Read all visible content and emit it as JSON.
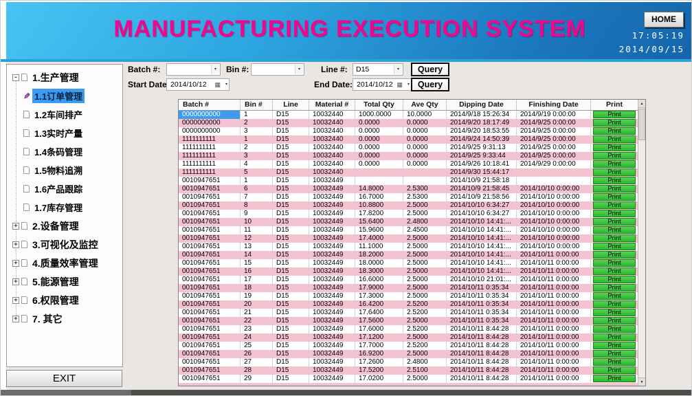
{
  "header": {
    "title": "MANUFACTURING EXECUTION SYSTEM",
    "home_label": "HOME",
    "time": "17:05:19",
    "date": "2014/09/15"
  },
  "glyphs": {
    "expand_plus": "+",
    "expand_minus": "-",
    "pencil": "✎",
    "dropdown": "▾",
    "calendar": "▦",
    "scroll_up": "▲",
    "scroll_down": "▼"
  },
  "sidebar": {
    "items": [
      {
        "label": "1.生产管理",
        "level": 0,
        "expander": "minus",
        "selected": false
      },
      {
        "label": "1.1订单管理",
        "level": 1,
        "selected": true
      },
      {
        "label": "1.2车间排产",
        "level": 1,
        "selected": false
      },
      {
        "label": "1.3实时产量",
        "level": 1,
        "selected": false
      },
      {
        "label": "1.4条码管理",
        "level": 1,
        "selected": false
      },
      {
        "label": "1.5物料追溯",
        "level": 1,
        "selected": false
      },
      {
        "label": "1.6产品跟踪",
        "level": 1,
        "selected": false
      },
      {
        "label": "1.7库存管理",
        "level": 1,
        "selected": false
      },
      {
        "label": "2.设备管理",
        "level": 0,
        "expander": "plus",
        "selected": false
      },
      {
        "label": "3.可视化及监控",
        "level": 0,
        "expander": "plus",
        "selected": false
      },
      {
        "label": "4.质量效率管理",
        "level": 0,
        "expander": "plus",
        "selected": false
      },
      {
        "label": "5.能源管理",
        "level": 0,
        "expander": "plus",
        "selected": false
      },
      {
        "label": "6.权限管理",
        "level": 0,
        "expander": "plus",
        "selected": false
      },
      {
        "label": "7. 其它",
        "level": 0,
        "expander": "plus",
        "selected": false
      }
    ],
    "exit_label": "EXIT"
  },
  "filters": {
    "batch_label": "Batch #:",
    "batch_value": "",
    "bin_label": "Bin #:",
    "bin_value": "",
    "line_label": "Line #:",
    "line_value": "D15",
    "query_label": "Query",
    "start_date_label": "Start Date :",
    "start_date_value": "2014/10/12",
    "end_date_label": "End Date:",
    "end_date_value": "2014/10/12",
    "query2_label": "Query"
  },
  "table": {
    "columns": [
      "Batch #",
      "Bin #",
      "Line",
      "Material #",
      "Total Qty",
      "Ave Qty",
      "Dipping Date",
      "Finishing Date",
      "Print"
    ],
    "print_label": "Print",
    "selected_row": 0,
    "selected_col": 0,
    "rows": [
      [
        "0000000000",
        "1",
        "D15",
        "10032440",
        "1000.0000",
        "10.0000",
        "2014/9/18 15:26:34",
        "2014/9/19 0:00:00"
      ],
      [
        "0000000000",
        "2",
        "D15",
        "10032440",
        "0.0000",
        "0.0000",
        "2014/9/20 18:17:49",
        "2014/9/25 0:00:00"
      ],
      [
        "0000000000",
        "3",
        "D15",
        "10032440",
        "0.0000",
        "0.0000",
        "2014/9/20 18:53:55",
        "2014/9/25 0:00:00"
      ],
      [
        "1111111111",
        "1",
        "D15",
        "10032440",
        "0.0000",
        "0.0000",
        "2014/9/24 14:50:39",
        "2014/9/25 0:00:00"
      ],
      [
        "1111111111",
        "2",
        "D15",
        "10032440",
        "0.0000",
        "0.0000",
        "2014/9/25 9:31:13",
        "2014/9/25 0:00:00"
      ],
      [
        "1111111111",
        "3",
        "D15",
        "10032440",
        "0.0000",
        "0.0000",
        "2014/9/25 9:33:44",
        "2014/9/25 0:00:00"
      ],
      [
        "1111111111",
        "4",
        "D15",
        "10032440",
        "0.0000",
        "0.0000",
        "2014/9/26 10:18:41",
        "2014/9/29 0:00:00"
      ],
      [
        "1111111111",
        "5",
        "D15",
        "10032440",
        "",
        "",
        "2014/9/30 15:44:17",
        ""
      ],
      [
        "0010947651",
        "1",
        "D15",
        "10032449",
        "",
        "",
        "2014/10/9 21:58:18",
        ""
      ],
      [
        "0010947651",
        "6",
        "D15",
        "10032449",
        "14.8000",
        "2.5300",
        "2014/10/9 21:58:45",
        "2014/10/10 0:00:00"
      ],
      [
        "0010947651",
        "7",
        "D15",
        "10032449",
        "16.7000",
        "2.5300",
        "2014/10/9 21:58:56",
        "2014/10/10 0:00:00"
      ],
      [
        "0010947651",
        "8",
        "D15",
        "10032449",
        "10.8800",
        "2.5000",
        "2014/10/10 6:34:27",
        "2014/10/10 0:00:00"
      ],
      [
        "0010947651",
        "9",
        "D15",
        "10032449",
        "17.8200",
        "2.5000",
        "2014/10/10 6:34:27",
        "2014/10/10 0:00:00"
      ],
      [
        "0010947651",
        "10",
        "D15",
        "10032449",
        "15.6400",
        "2.4800",
        "2014/10/10 14:41:...",
        "2014/10/10 0:00:00"
      ],
      [
        "0010947651",
        "11",
        "D15",
        "10032449",
        "15.9600",
        "2.4500",
        "2014/10/10 14:41:...",
        "2014/10/10 0:00:00"
      ],
      [
        "0010947651",
        "12",
        "D15",
        "10032449",
        "17.4000",
        "2.5000",
        "2014/10/10 14:41:...",
        "2014/10/10 0:00:00"
      ],
      [
        "0010947651",
        "13",
        "D15",
        "10032449",
        "11.1000",
        "2.5000",
        "2014/10/10 14:41:...",
        "2014/10/10 0:00:00"
      ],
      [
        "0010947651",
        "14",
        "D15",
        "10032449",
        "18.2000",
        "2.5000",
        "2014/10/10 14:41:...",
        "2014/10/11 0:00:00"
      ],
      [
        "0010947651",
        "15",
        "D15",
        "10032449",
        "18.0000",
        "2.5000",
        "2014/10/10 14:41:...",
        "2014/10/11 0:00:00"
      ],
      [
        "0010947651",
        "16",
        "D15",
        "10032449",
        "18.3000",
        "2.5000",
        "2014/10/10 14:41:...",
        "2014/10/11 0:00:00"
      ],
      [
        "0010947651",
        "17",
        "D15",
        "10032449",
        "16.6000",
        "2.5000",
        "2014/10/10 21:01:...",
        "2014/10/11 0:00:00"
      ],
      [
        "0010947651",
        "18",
        "D15",
        "10032449",
        "17.9000",
        "2.5000",
        "2014/10/11 0:35:34",
        "2014/10/11 0:00:00"
      ],
      [
        "0010947651",
        "19",
        "D15",
        "10032449",
        "17.3000",
        "2.5000",
        "2014/10/11 0:35:34",
        "2014/10/11 0:00:00"
      ],
      [
        "0010947651",
        "20",
        "D15",
        "10032449",
        "16.4200",
        "2.5200",
        "2014/10/11 0:35:34",
        "2014/10/11 0:00:00"
      ],
      [
        "0010947651",
        "21",
        "D15",
        "10032449",
        "17.6400",
        "2.5200",
        "2014/10/11 0:35:34",
        "2014/10/11 0:00:00"
      ],
      [
        "0010947651",
        "22",
        "D15",
        "10032449",
        "17.5600",
        "2.5000",
        "2014/10/11 0:35:34",
        "2014/10/11 0:00:00"
      ],
      [
        "0010947651",
        "23",
        "D15",
        "10032449",
        "17.6000",
        "2.5200",
        "2014/10/11 8:44:28",
        "2014/10/11 0:00:00"
      ],
      [
        "0010947651",
        "24",
        "D15",
        "10032449",
        "17.1200",
        "2.5000",
        "2014/10/11 8:44:28",
        "2014/10/11 0:00:00"
      ],
      [
        "0010947651",
        "25",
        "D15",
        "10032449",
        "17.7000",
        "2.5200",
        "2014/10/11 8:44:28",
        "2014/10/11 0:00:00"
      ],
      [
        "0010947651",
        "26",
        "D15",
        "10032449",
        "16.9200",
        "2.5000",
        "2014/10/11 8:44:28",
        "2014/10/11 0:00:00"
      ],
      [
        "0010947651",
        "27",
        "D15",
        "10032449",
        "17.2600",
        "2.4800",
        "2014/10/11 8:44:28",
        "2014/10/11 0:00:00"
      ],
      [
        "0010947651",
        "28",
        "D15",
        "10032449",
        "17.5200",
        "2.5100",
        "2014/10/11 8:44:28",
        "2014/10/11 0:00:00"
      ],
      [
        "0010947651",
        "29",
        "D15",
        "10032449",
        "17.0200",
        "2.5000",
        "2014/10/11 8:44:28",
        "2014/10/11 0:00:00"
      ]
    ]
  },
  "colors": {
    "header_blue_light": "#47C4F3",
    "header_blue_dark": "#1565AB",
    "title_magenta": "#F1068E",
    "row_pink": "#F5C3CF",
    "print_green": "#3CC43C",
    "selection_blue": "#3E9BF0"
  }
}
